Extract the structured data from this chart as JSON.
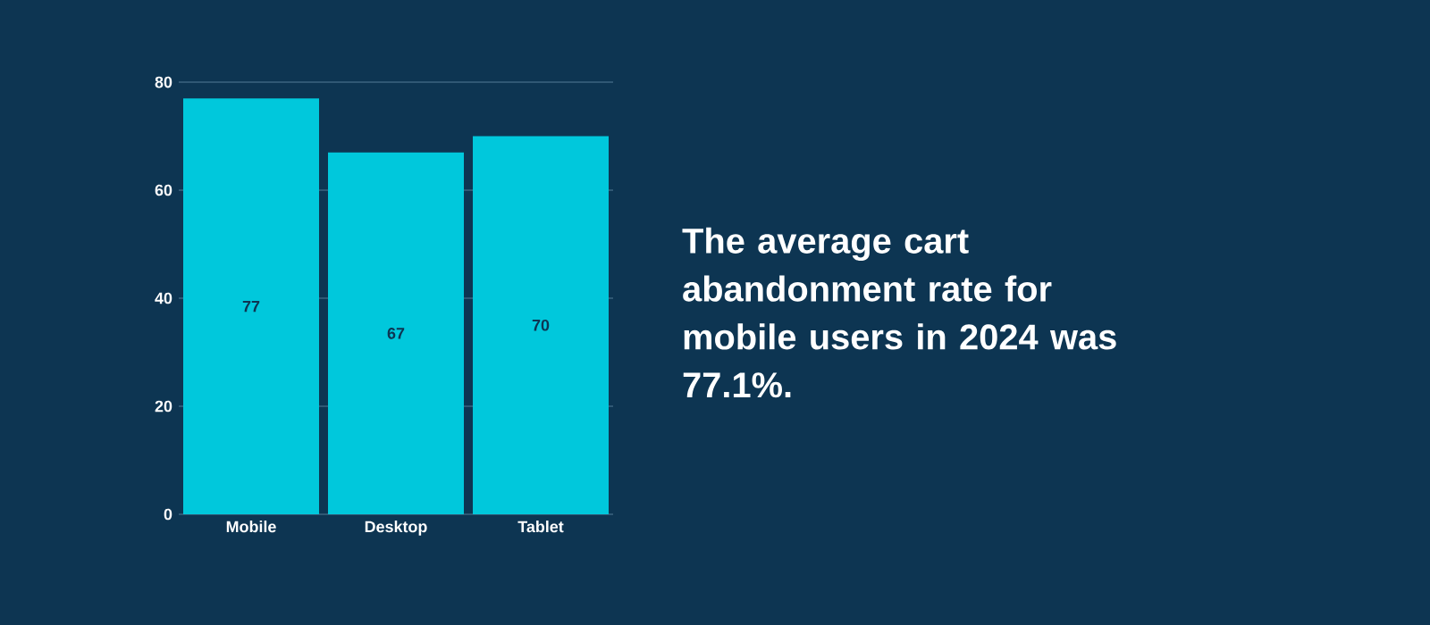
{
  "chart_data": {
    "type": "bar",
    "categories": [
      "Mobile",
      "Desktop",
      "Tablet"
    ],
    "values": [
      77,
      67,
      70
    ],
    "color": "#00c8dc",
    "ylim": [
      0,
      80
    ],
    "yticks": [
      0,
      20,
      40,
      60,
      80
    ],
    "grid": "y",
    "data_labels": true,
    "annotations": [
      "The average cart abandonment rate for mobile users in 2024 was 77.1%."
    ]
  }
}
